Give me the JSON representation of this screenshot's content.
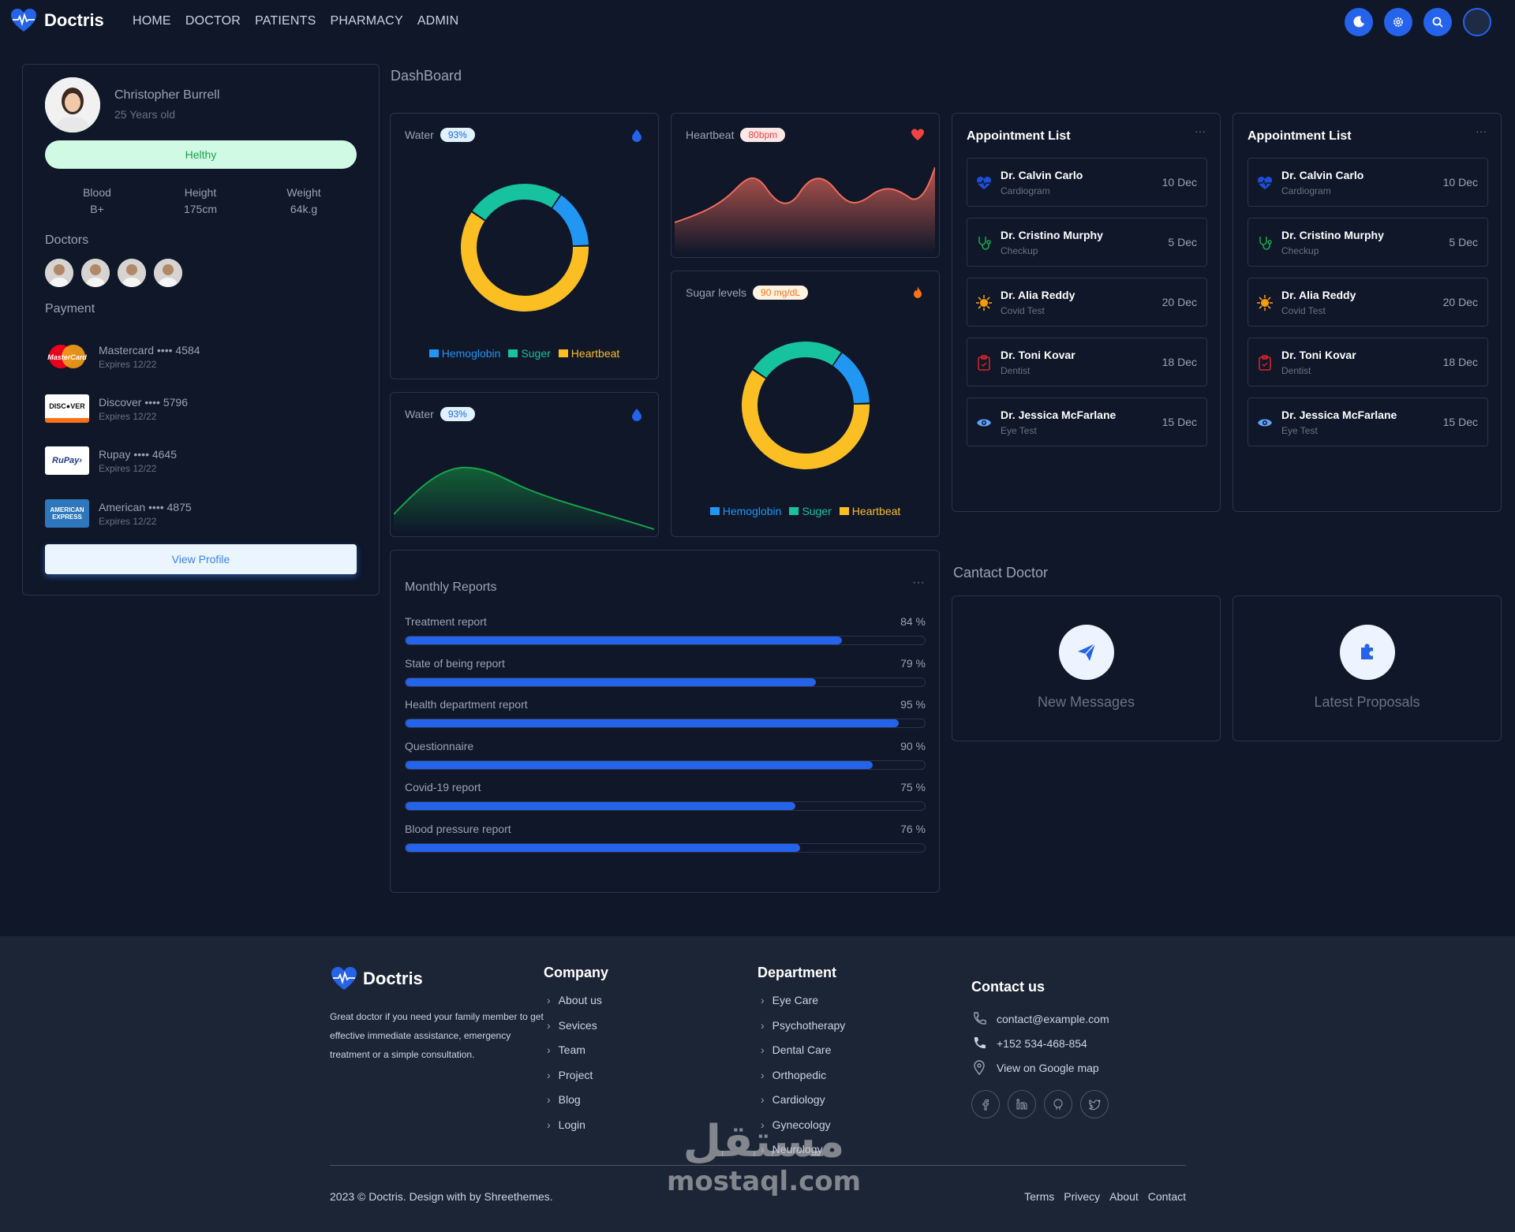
{
  "brand": {
    "name": "Doctris"
  },
  "nav": {
    "items": [
      "HOME",
      "DOCTOR",
      "PATIENTS",
      "PHARMACY",
      "ADMIN"
    ]
  },
  "profile": {
    "name": "Christopher Burrell",
    "age": "25 Years old",
    "status": "Helthy",
    "stats": [
      {
        "label": "Blood",
        "value": "B+"
      },
      {
        "label": "Height",
        "value": "175cm"
      },
      {
        "label": "Weight",
        "value": "64k.g"
      }
    ],
    "doctors_title": "Doctors",
    "payment_title": "Payment",
    "payments": [
      {
        "name": "Mastercard •••• 4584",
        "exp": "Expires 12/22",
        "logo": "MasterCard"
      },
      {
        "name": "Discover •••• 5796",
        "exp": "Expires 12/22",
        "logo": "DISCOVER"
      },
      {
        "name": "Rupay •••• 4645",
        "exp": "Expires 12/22",
        "logo": "RuPay"
      },
      {
        "name": "American •••• 4875",
        "exp": "Expires 12/22",
        "logo": "AMERICAN EXPRESS"
      }
    ],
    "view_profile": "View Profile"
  },
  "dashboard_title": "DashBoard",
  "water1": {
    "title": "Water",
    "badge": "93%"
  },
  "water2": {
    "title": "Water",
    "badge": "93%"
  },
  "heartbeat": {
    "title": "Heartbeat",
    "badge": "80bpm"
  },
  "sugar": {
    "title": "Sugar levels",
    "badge": "90 mg/dL"
  },
  "legend": [
    "Hemoglobin",
    "Suger",
    "Heartbeat"
  ],
  "colors": {
    "hemoglobin": "#2196f3",
    "suger": "#16c2a0",
    "heartbeat": "#fbbf24",
    "accent": "#2563eb"
  },
  "donut_values": [
    15,
    60,
    25
  ],
  "appointments": {
    "title": "Appointment List",
    "items": [
      {
        "name": "Dr. Calvin Carlo",
        "sub": "Cardiogram",
        "date": "10 Dec",
        "icon": "heart-pulse-icon"
      },
      {
        "name": "Dr. Cristino Murphy",
        "sub": "Checkup",
        "date": "5 Dec",
        "icon": "stethoscope-icon"
      },
      {
        "name": "Dr. Alia Reddy",
        "sub": "Covid Test",
        "date": "20 Dec",
        "icon": "virus-icon"
      },
      {
        "name": "Dr. Toni Kovar",
        "sub": "Dentist",
        "date": "18 Dec",
        "icon": "clipboard-icon"
      },
      {
        "name": "Dr. Jessica McFarlane",
        "sub": "Eye Test",
        "date": "15 Dec",
        "icon": "eye-icon"
      }
    ]
  },
  "monthly": {
    "title": "Monthly Reports",
    "reports": [
      {
        "label": "Treatment report",
        "value": 84,
        "text": "84 %"
      },
      {
        "label": "State of being report",
        "value": 79,
        "text": "79 %"
      },
      {
        "label": "Health department report",
        "value": 95,
        "text": "95 %"
      },
      {
        "label": "Questionnaire",
        "value": 90,
        "text": "90 %"
      },
      {
        "label": "Covid-19 report",
        "value": 75,
        "text": "75 %"
      },
      {
        "label": "Blood pressure report",
        "value": 76,
        "text": "76 %"
      }
    ]
  },
  "contact": {
    "title": "Cantact Doctor",
    "messages": "New Messages",
    "proposals": "Latest Proposals"
  },
  "footer": {
    "desc": "Great doctor if you need your family member to get effective immediate assistance, emergency treatment or a simple consultation.",
    "company_title": "Company",
    "company": [
      "About us",
      "Sevices",
      "Team",
      "Project",
      "Blog",
      "Login"
    ],
    "department_title": "Department",
    "department": [
      "Eye Care",
      "Psychotherapy",
      "Dental Care",
      "Orthopedic",
      "Cardiology",
      "Gynecology",
      "Neurology"
    ],
    "contact_title": "Contact us",
    "email": "contact@example.com",
    "phone": "+152 534-468-854",
    "map": "View on Google map",
    "copyright": "2023 © Doctris. Design with by Shreethemes.",
    "links": [
      "Terms",
      "Privecy",
      "About",
      "Contact"
    ]
  },
  "watermark": {
    "arabic": "مستقل",
    "latin": "mostaql.com"
  }
}
